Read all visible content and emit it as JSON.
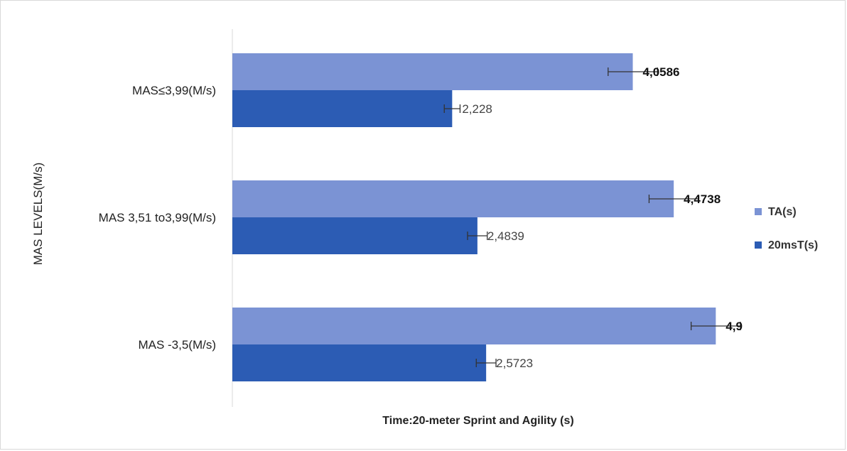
{
  "chart_data": {
    "type": "bar",
    "orientation": "horizontal",
    "categories": [
      "MAS≤3,99(M/s)",
      "MAS 3,51 to3,99(M/s)",
      "MAS -3,5(M/s)"
    ],
    "series": [
      {
        "name": "TA(s)",
        "values": [
          4.0586,
          4.4738,
          4.9
        ],
        "labels": [
          "4,0586",
          "4,4738",
          "4,9"
        ],
        "error": [
          0.25,
          0.25,
          0.25
        ],
        "color": "#7b93d4"
      },
      {
        "name": "20msT(s)",
        "values": [
          2.228,
          2.4839,
          2.5723
        ],
        "labels": [
          "2,228",
          "2,4839",
          "2,5723"
        ],
        "error": [
          0.08,
          0.1,
          0.1
        ],
        "color": "#2c5cb4"
      }
    ],
    "xlabel": "Time:20-meter Sprint and Agility (s)",
    "ylabel": "MAS LEVELS(M/s)",
    "xlim": [
      0,
      5.2
    ],
    "grid": false,
    "legend": "right"
  }
}
